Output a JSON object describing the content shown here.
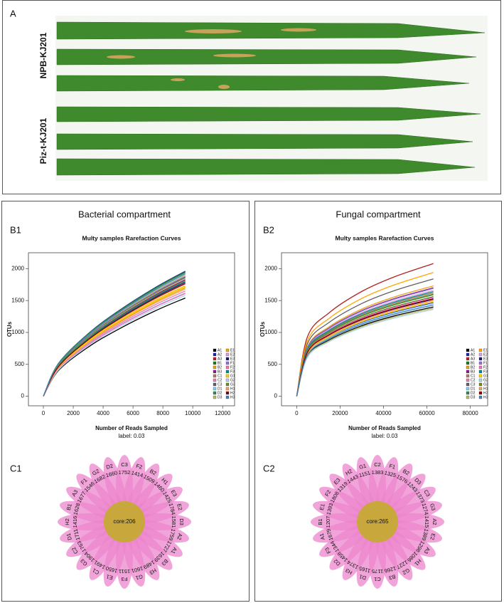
{
  "panels": {
    "a": "A",
    "b1": "B1",
    "b2": "B2",
    "c1": "C1",
    "c2": "C2"
  },
  "leaf_labels": [
    "NPB-KJ201",
    "Piz-t-KJ201"
  ],
  "compartments": [
    "Bacterial compartment",
    "Fungal compartment"
  ],
  "chart_data": [
    {
      "type": "line",
      "title": "Multy samples Rarefaction Curves",
      "x_label": "Number of Reads Sampled",
      "subtitle": "label: 0.03",
      "y_label": "OTUs",
      "xlim": [
        -1000,
        12800
      ],
      "ylim": [
        -150,
        2250
      ],
      "xticks": [
        0,
        2000,
        4000,
        6000,
        8000,
        10000,
        12000
      ],
      "yticks": [
        0,
        500,
        1000,
        1500,
        2000
      ],
      "x": [
        0,
        1000,
        3000,
        5000,
        7500,
        9500
      ],
      "series": [
        {
          "name": "A1",
          "color": "#000000",
          "values": [
            0,
            400,
            770,
            1047,
            1340,
            1540
          ]
        },
        {
          "name": "A2",
          "color": "#1f1fb4",
          "values": [
            0,
            510,
            980,
            1333,
            1705,
            1960
          ]
        },
        {
          "name": "A3",
          "color": "#b22222",
          "values": [
            0,
            473,
            910,
            1238,
            1583,
            1820
          ]
        },
        {
          "name": "B1",
          "color": "#1a7a1a",
          "values": [
            0,
            507,
            975,
            1326,
            1697,
            1950
          ]
        },
        {
          "name": "B2",
          "color": "#e8a317",
          "values": [
            0,
            442,
            850,
            1156,
            1479,
            1700
          ]
        },
        {
          "name": "B3",
          "color": "#8b1a8b",
          "values": [
            0,
            486,
            935,
            1272,
            1627,
            1870
          ]
        },
        {
          "name": "C1",
          "color": "#b08060",
          "values": [
            0,
            458,
            880,
            1197,
            1531,
            1760
          ]
        },
        {
          "name": "C2",
          "color": "#e57fb0",
          "values": [
            0,
            429,
            825,
            1122,
            1436,
            1650
          ]
        },
        {
          "name": "C3",
          "color": "#606060",
          "values": [
            0,
            476,
            915,
            1244,
            1592,
            1830
          ]
        },
        {
          "name": "D1",
          "color": "#87cefa",
          "values": [
            0,
            421,
            810,
            1102,
            1409,
            1620
          ]
        },
        {
          "name": "D2",
          "color": "#2e8b57",
          "values": [
            0,
            504,
            970,
            1319,
            1688,
            1940
          ]
        },
        {
          "name": "D3",
          "color": "#bdb76b",
          "values": [
            0,
            494,
            950,
            1292,
            1653,
            1900
          ]
        },
        {
          "name": "E1",
          "color": "#ffa500",
          "values": [
            0,
            450,
            865,
            1176,
            1505,
            1730
          ]
        },
        {
          "name": "E2",
          "color": "#dda0dd",
          "values": [
            0,
            481,
            925,
            1258,
            1610,
            1850
          ]
        },
        {
          "name": "E3",
          "color": "#191970",
          "values": [
            0,
            465,
            895,
            1217,
            1557,
            1790
          ]
        },
        {
          "name": "F1",
          "color": "#9370db",
          "values": [
            0,
            489,
            940,
            1278,
            1636,
            1880
          ]
        },
        {
          "name": "F2",
          "color": "#ff69b4",
          "values": [
            0,
            419,
            805,
            1095,
            1401,
            1610
          ]
        },
        {
          "name": "F3",
          "color": "#008b8b",
          "values": [
            0,
            468,
            900,
            1224,
            1566,
            1800
          ]
        },
        {
          "name": "G1",
          "color": "#ffd700",
          "values": [
            0,
            447,
            860,
            1170,
            1496,
            1720
          ]
        },
        {
          "name": "G2",
          "color": "#add8e6",
          "values": [
            0,
            411,
            790,
            1074,
            1375,
            1580
          ]
        },
        {
          "name": "G3",
          "color": "#6b8e23",
          "values": [
            0,
            484,
            930,
            1265,
            1618,
            1860
          ]
        },
        {
          "name": "H1",
          "color": "#f4a460",
          "values": [
            0,
            437,
            840,
            1142,
            1462,
            1680
          ]
        },
        {
          "name": "H2",
          "color": "#8b0000",
          "values": [
            0,
            460,
            885,
            1204,
            1540,
            1770
          ]
        },
        {
          "name": "H3",
          "color": "#4682b4",
          "values": [
            0,
            499,
            960,
            1306,
            1670,
            1920
          ]
        }
      ]
    },
    {
      "type": "line",
      "title": "Multy samples Rarefaction Curves",
      "x_label": "Number of Reads Sampled",
      "subtitle": "label: 0.03",
      "y_label": "OTUs",
      "xlim": [
        -7000,
        88000
      ],
      "ylim": [
        -150,
        2250
      ],
      "xticks": [
        0,
        20000,
        40000,
        60000,
        80000
      ],
      "yticks": [
        0,
        500,
        1000,
        1500,
        2000
      ],
      "x": [
        0,
        5000,
        15000,
        30000,
        45000,
        63000
      ],
      "series": [
        {
          "name": "A1",
          "color": "#000000",
          "values": [
            0,
            630,
            882,
            1106,
            1260,
            1400
          ]
        },
        {
          "name": "A2",
          "color": "#1f1fb4",
          "values": [
            0,
            662,
            926,
            1161,
            1323,
            1470
          ]
        },
        {
          "name": "A3",
          "color": "#b22222",
          "values": [
            0,
            936,
            1310,
            1643,
            1872,
            2080
          ]
        },
        {
          "name": "B1",
          "color": "#1a7a1a",
          "values": [
            0,
            702,
            983,
            1232,
            1404,
            1560
          ]
        },
        {
          "name": "B2",
          "color": "#e8a317",
          "values": [
            0,
            779,
            1090,
            1367,
            1557,
            1730
          ]
        },
        {
          "name": "B3",
          "color": "#8b1a8b",
          "values": [
            0,
            765,
            1071,
            1343,
            1530,
            1700
          ]
        },
        {
          "name": "C1",
          "color": "#b08060",
          "values": [
            0,
            729,
            1021,
            1280,
            1458,
            1620
          ]
        },
        {
          "name": "C2",
          "color": "#e57fb0",
          "values": [
            0,
            675,
            945,
            1185,
            1350,
            1500
          ]
        },
        {
          "name": "C3",
          "color": "#606060",
          "values": [
            0,
            828,
            1159,
            1454,
            1656,
            1840
          ]
        },
        {
          "name": "D1",
          "color": "#87cefa",
          "values": [
            0,
            653,
            914,
            1146,
            1305,
            1450
          ]
        },
        {
          "name": "D2",
          "color": "#2e8b57",
          "values": [
            0,
            720,
            1008,
            1264,
            1440,
            1600
          ]
        },
        {
          "name": "D3",
          "color": "#bdb76b",
          "values": [
            0,
            621,
            869,
            1090,
            1242,
            1380
          ]
        },
        {
          "name": "E1",
          "color": "#ffa500",
          "values": [
            0,
            873,
            1222,
            1533,
            1746,
            1940
          ]
        },
        {
          "name": "E2",
          "color": "#dda0dd",
          "values": [
            0,
            747,
            1046,
            1311,
            1494,
            1660
          ]
        },
        {
          "name": "E3",
          "color": "#191970",
          "values": [
            0,
            684,
            958,
            1201,
            1368,
            1520
          ]
        },
        {
          "name": "F1",
          "color": "#9370db",
          "values": [
            0,
            761,
            1065,
            1335,
            1521,
            1690
          ]
        },
        {
          "name": "F2",
          "color": "#ff69b4",
          "values": [
            0,
            698,
            977,
            1225,
            1395,
            1550
          ]
        },
        {
          "name": "F3",
          "color": "#008b8b",
          "values": [
            0,
            738,
            1033,
            1296,
            1476,
            1640
          ]
        },
        {
          "name": "G1",
          "color": "#ffd700",
          "values": [
            0,
            666,
            932,
            1169,
            1332,
            1480
          ]
        },
        {
          "name": "G2",
          "color": "#add8e6",
          "values": [
            0,
            612,
            857,
            1074,
            1224,
            1360
          ]
        },
        {
          "name": "G3",
          "color": "#6b8e23",
          "values": [
            0,
            716,
            1002,
            1256,
            1431,
            1590
          ]
        },
        {
          "name": "H1",
          "color": "#f4a460",
          "values": [
            0,
            675,
            945,
            1185,
            1350,
            1500
          ]
        },
        {
          "name": "H2",
          "color": "#8b0000",
          "values": [
            0,
            689,
            964,
            1209,
            1377,
            1530
          ]
        },
        {
          "name": "H3",
          "color": "#4682b4",
          "values": [
            0,
            644,
            901,
            1130,
            1287,
            1430
          ]
        }
      ]
    }
  ],
  "flowers": [
    {
      "core": "core:206",
      "petals": [
        {
          "name": "C3",
          "value": 1752
        },
        {
          "name": "F2",
          "value": 1414
        },
        {
          "name": "B2",
          "value": 1509
        },
        {
          "name": "H1",
          "value": 1460
        },
        {
          "name": "E3",
          "value": 1425
        },
        {
          "name": "E2",
          "value": 1784
        },
        {
          "name": "D3",
          "value": 1581
        },
        {
          "name": "A2",
          "value": 1759
        },
        {
          "name": "A1",
          "value": 1727
        },
        {
          "name": "B3",
          "value": 1639
        },
        {
          "name": "H3",
          "value": 1489
        },
        {
          "name": "G1",
          "value": 1601
        },
        {
          "name": "F3",
          "value": 1511
        },
        {
          "name": "E1",
          "value": 1650
        },
        {
          "name": "C1",
          "value": 1491
        },
        {
          "name": "G3",
          "value": 1904
        },
        {
          "name": "C2",
          "value": 1763
        },
        {
          "name": "D1",
          "value": 1711
        },
        {
          "name": "H2",
          "value": 1416
        },
        {
          "name": "B1",
          "value": 1628
        },
        {
          "name": "A3",
          "value": 1677
        },
        {
          "name": "F1",
          "value": 1546
        },
        {
          "name": "G2",
          "value": 1682
        },
        {
          "name": "D2",
          "value": 1660
        }
      ]
    },
    {
      "core": "core:265",
      "petals": [
        {
          "name": "C2",
          "value": 1383
        },
        {
          "name": "F1",
          "value": 1325
        },
        {
          "name": "B2",
          "value": 1576
        },
        {
          "name": "D3",
          "value": 1243
        },
        {
          "name": "C3",
          "value": 1373
        },
        {
          "name": "G3",
          "value": 1274
        },
        {
          "name": "A2",
          "value": 1415
        },
        {
          "name": "E2",
          "value": 1389
        },
        {
          "name": "A3",
          "value": 1298
        },
        {
          "name": "H1",
          "value": 1086
        },
        {
          "name": "G2",
          "value": 1227
        },
        {
          "name": "B3",
          "value": 1266
        },
        {
          "name": "C1",
          "value": 1175
        },
        {
          "name": "D1",
          "value": 1165
        },
        {
          "name": "H3",
          "value": 1374
        },
        {
          "name": "D2",
          "value": 1458
        },
        {
          "name": "F3",
          "value": 1344
        },
        {
          "name": "A1",
          "value": 1679
        },
        {
          "name": "B1",
          "value": 1207
        },
        {
          "name": "E1",
          "value": 1393
        },
        {
          "name": "F2",
          "value": 1808
        },
        {
          "name": "E3",
          "value": 1319
        },
        {
          "name": "H2",
          "value": 1443
        },
        {
          "name": "G1",
          "value": 1151
        }
      ]
    }
  ]
}
